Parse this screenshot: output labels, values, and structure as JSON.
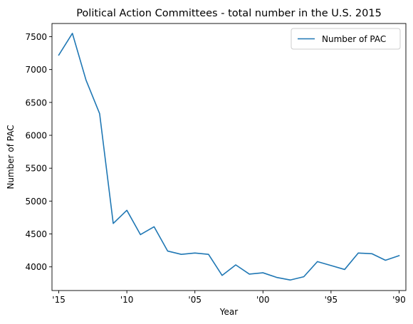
{
  "chart_data": {
    "type": "line",
    "title": "Political Action Committees - total number in the U.S. 2015",
    "xlabel": "Year",
    "ylabel": "Number of PAC",
    "x_tick_labels": [
      "'15",
      "'10",
      "'05",
      "'00",
      "'95",
      "'90"
    ],
    "x_ticks": [
      2015,
      2010,
      2005,
      2000,
      1995,
      1990
    ],
    "y_ticks": [
      4000,
      4500,
      5000,
      5500,
      6000,
      6500,
      7000,
      7500
    ],
    "x_axis_reversed": true,
    "xlim": [
      2015.5,
      1989.5
    ],
    "ylim": [
      3640,
      7700
    ],
    "grid": false,
    "legend_position": "top-right",
    "series": [
      {
        "name": "Number of PAC",
        "color": "#1f77b4",
        "x": [
          2015,
          2014,
          2013,
          2012,
          2011,
          2010,
          2009,
          2008,
          2007,
          2006,
          2005,
          2004,
          2003,
          2002,
          2001,
          2000,
          1999,
          1998,
          1997,
          1996,
          1995,
          1994,
          1993,
          1992,
          1991,
          1990
        ],
        "values": [
          7220,
          7550,
          6840,
          6330,
          4660,
          4860,
          4490,
          4610,
          4240,
          4190,
          4210,
          4190,
          3870,
          4030,
          3890,
          3910,
          3840,
          3800,
          3850,
          4080,
          4020,
          3960,
          4210,
          4200,
          4100,
          4170
        ]
      }
    ]
  }
}
